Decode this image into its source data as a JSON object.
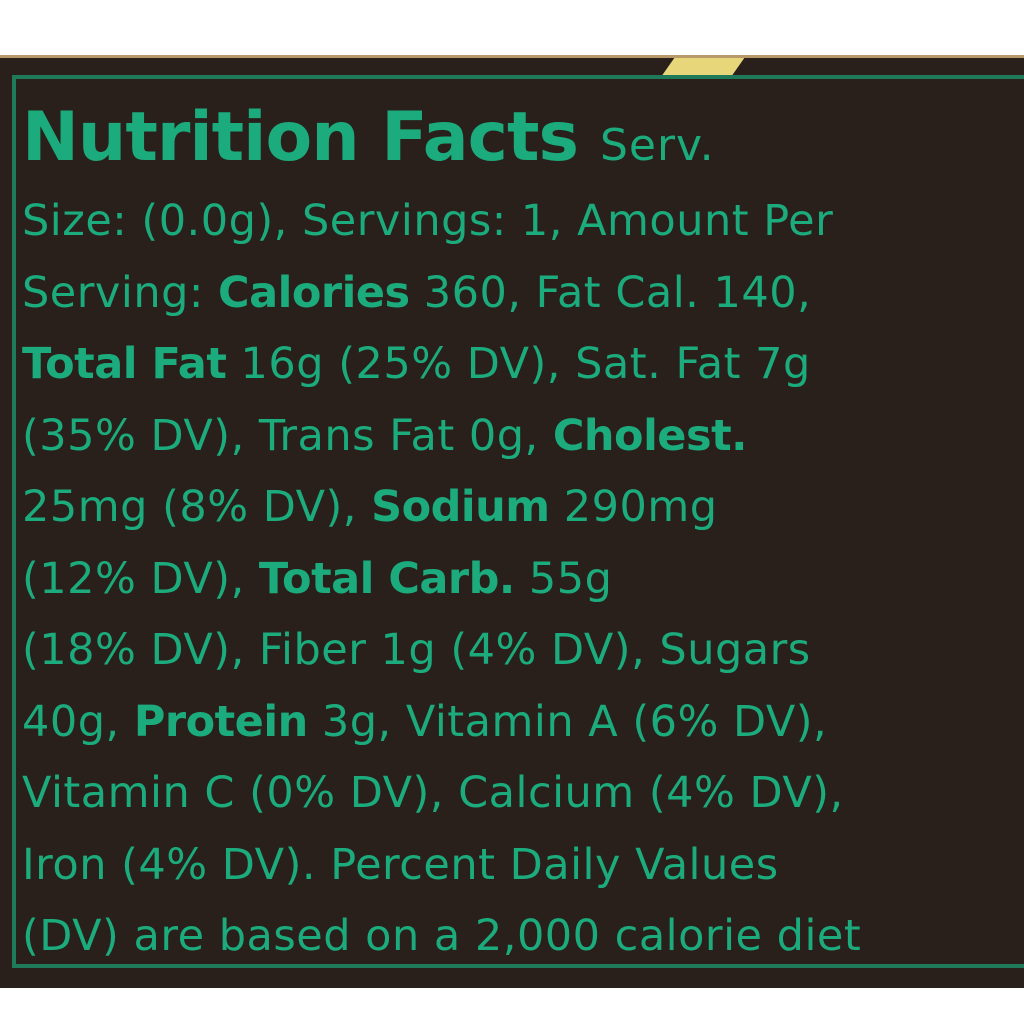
{
  "label": {
    "title": "Nutrition Facts",
    "title_suffix": "Serv.",
    "colors": {
      "background": "#2a201b",
      "text": "#1bab7c",
      "border": "#1f7a5a",
      "accent": "#e8d77a"
    },
    "lines": [
      [
        {
          "t": "Size:  (0.0g), Servings: 1, Amount Per",
          "b": false
        }
      ],
      [
        {
          "t": "Serving: ",
          "b": false
        },
        {
          "t": "Calories",
          "b": true
        },
        {
          "t": " 360, Fat Cal. 140,",
          "b": false
        }
      ],
      [
        {
          "t": "Total Fat",
          "b": true
        },
        {
          "t": " 16g (25% DV), Sat. Fat 7g",
          "b": false
        }
      ],
      [
        {
          "t": "(35% DV), Trans Fat 0g, ",
          "b": false
        },
        {
          "t": "Cholest.",
          "b": true
        }
      ],
      [
        {
          "t": "25mg (8% DV), ",
          "b": false
        },
        {
          "t": "Sodium",
          "b": true
        },
        {
          "t": " 290mg",
          "b": false
        }
      ],
      [
        {
          "t": "(12% DV), ",
          "b": false
        },
        {
          "t": "Total Carb.",
          "b": true
        },
        {
          "t": " 55g",
          "b": false
        }
      ],
      [
        {
          "t": "(18% DV), Fiber 1g (4% DV), Sugars",
          "b": false
        }
      ],
      [
        {
          "t": "40g, ",
          "b": false
        },
        {
          "t": "Protein",
          "b": true
        },
        {
          "t": " 3g, Vitamin A (6% DV),",
          "b": false
        }
      ],
      [
        {
          "t": "Vitamin C (0% DV), Calcium (4% DV),",
          "b": false
        }
      ],
      [
        {
          "t": "Iron (4% DV). Percent Daily Values",
          "b": false
        }
      ],
      [
        {
          "t": "(DV) are based on a 2,000 calorie diet",
          "b": false
        }
      ]
    ]
  }
}
